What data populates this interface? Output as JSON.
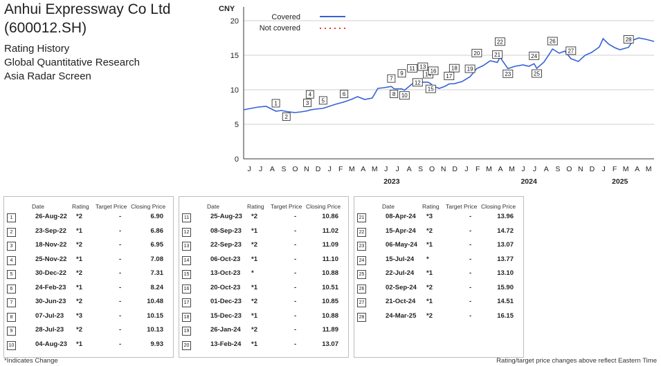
{
  "header": {
    "company": "Anhui Expressway Co Ltd",
    "ticker": "(600012.SH)",
    "lines": [
      "Rating History",
      "Global Quantitative Research",
      "Asia Radar Screen"
    ]
  },
  "table_headers": {
    "date": "Date",
    "rating": "Rating",
    "target": "Target Price",
    "close": "Closing Price"
  },
  "footnotes": {
    "left": "*Indicates Change",
    "right": "Rating/target price changes above reflect Eastern Time"
  },
  "colors": {
    "line": "#3361d6",
    "not_covered": "#e53935",
    "grid": "#cfcfcf"
  },
  "chart_data": {
    "type": "line",
    "ylabel": "CNY",
    "ylim": [
      0,
      22
    ],
    "yticks": [
      0,
      5,
      10,
      15,
      20
    ],
    "x_month_labels": [
      "J",
      "J",
      "A",
      "S",
      "O",
      "N",
      "D",
      "J",
      "F",
      "M",
      "A",
      "M",
      "J",
      "J",
      "A",
      "S",
      "O",
      "N",
      "D",
      "J",
      "F",
      "M",
      "A",
      "M",
      "J",
      "J",
      "A",
      "S",
      "O",
      "N",
      "D",
      "J",
      "F",
      "M",
      "A",
      "M"
    ],
    "x_month_start": "2022-06",
    "year_labels": [
      {
        "label": "2023",
        "month": "2023-07"
      },
      {
        "label": "2024",
        "month": "2024-07"
      },
      {
        "label": "2025",
        "month": "2025-03"
      }
    ],
    "xlim": [
      "2022-06-01",
      "2025-05-31"
    ],
    "legend": [
      {
        "name": "Covered",
        "style": "solid"
      },
      {
        "name": "Not covered",
        "style": "dotted"
      }
    ],
    "series": [
      {
        "name": "Covered",
        "points": [
          [
            "2022-06-01",
            7.1
          ],
          [
            "2022-06-20",
            7.3
          ],
          [
            "2022-07-10",
            7.5
          ],
          [
            "2022-07-31",
            7.6
          ],
          [
            "2022-08-15",
            7.2
          ],
          [
            "2022-08-26",
            6.9
          ],
          [
            "2022-09-10",
            7.0
          ],
          [
            "2022-09-23",
            6.86
          ],
          [
            "2022-10-15",
            6.7
          ],
          [
            "2022-11-01",
            6.8
          ],
          [
            "2022-11-18",
            6.95
          ],
          [
            "2022-11-25",
            7.08
          ],
          [
            "2022-12-10",
            7.2
          ],
          [
            "2022-12-30",
            7.31
          ],
          [
            "2023-01-15",
            7.6
          ],
          [
            "2023-02-01",
            7.9
          ],
          [
            "2023-02-24",
            8.24
          ],
          [
            "2023-03-15",
            8.6
          ],
          [
            "2023-04-01",
            9.0
          ],
          [
            "2023-04-20",
            8.6
          ],
          [
            "2023-05-10",
            8.8
          ],
          [
            "2023-05-25",
            10.2
          ],
          [
            "2023-06-10",
            10.3
          ],
          [
            "2023-06-30",
            10.48
          ],
          [
            "2023-07-07",
            10.15
          ],
          [
            "2023-07-28",
            10.13
          ],
          [
            "2023-08-04",
            9.93
          ],
          [
            "2023-08-25",
            10.86
          ],
          [
            "2023-09-08",
            11.02
          ],
          [
            "2023-09-22",
            11.09
          ],
          [
            "2023-10-06",
            11.1
          ],
          [
            "2023-10-13",
            10.88
          ],
          [
            "2023-10-20",
            10.51
          ],
          [
            "2023-11-05",
            10.2
          ],
          [
            "2023-11-20",
            10.5
          ],
          [
            "2023-12-01",
            10.85
          ],
          [
            "2023-12-15",
            10.88
          ],
          [
            "2024-01-05",
            11.2
          ],
          [
            "2024-01-26",
            11.89
          ],
          [
            "2024-02-13",
            13.07
          ],
          [
            "2024-03-01",
            13.5
          ],
          [
            "2024-03-20",
            14.2
          ],
          [
            "2024-04-08",
            13.96
          ],
          [
            "2024-04-15",
            14.72
          ],
          [
            "2024-05-06",
            13.07
          ],
          [
            "2024-05-25",
            13.4
          ],
          [
            "2024-06-15",
            13.6
          ],
          [
            "2024-07-01",
            13.4
          ],
          [
            "2024-07-15",
            13.77
          ],
          [
            "2024-07-22",
            13.1
          ],
          [
            "2024-08-10",
            14.0
          ],
          [
            "2024-08-25",
            15.2
          ],
          [
            "2024-09-02",
            15.9
          ],
          [
            "2024-09-20",
            15.3
          ],
          [
            "2024-10-05",
            15.6
          ],
          [
            "2024-10-21",
            14.51
          ],
          [
            "2024-11-10",
            14.1
          ],
          [
            "2024-11-28",
            15.0
          ],
          [
            "2024-12-15",
            15.4
          ],
          [
            "2025-01-05",
            16.2
          ],
          [
            "2025-01-15",
            17.4
          ],
          [
            "2025-01-30",
            16.6
          ],
          [
            "2025-02-15",
            16.1
          ],
          [
            "2025-03-01",
            15.8
          ],
          [
            "2025-03-24",
            16.15
          ],
          [
            "2025-04-05",
            17.2
          ],
          [
            "2025-04-20",
            17.5
          ],
          [
            "2025-05-10",
            17.3
          ],
          [
            "2025-05-31",
            17.0
          ]
        ]
      }
    ],
    "markers": [
      {
        "n": "1",
        "date": "2022-08-26",
        "value": 6.9,
        "pos": "above"
      },
      {
        "n": "2",
        "date": "2022-09-23",
        "value": 6.86,
        "pos": "below"
      },
      {
        "n": "3",
        "date": "2022-11-18",
        "value": 6.95,
        "pos": "above"
      },
      {
        "n": "4",
        "date": "2022-11-25",
        "value": 7.08,
        "pos": "above2"
      },
      {
        "n": "5",
        "date": "2022-12-30",
        "value": 7.31,
        "pos": "above"
      },
      {
        "n": "6",
        "date": "2023-02-24",
        "value": 8.24,
        "pos": "above"
      },
      {
        "n": "7",
        "date": "2023-06-30",
        "value": 10.48,
        "pos": "above"
      },
      {
        "n": "8",
        "date": "2023-07-07",
        "value": 10.15,
        "pos": "below"
      },
      {
        "n": "9",
        "date": "2023-07-28",
        "value": 10.13,
        "pos": "above2"
      },
      {
        "n": "10",
        "date": "2023-08-04",
        "value": 9.93,
        "pos": "below"
      },
      {
        "n": "11",
        "date": "2023-08-25",
        "value": 10.86,
        "pos": "above2"
      },
      {
        "n": "12",
        "date": "2023-09-08",
        "value": 11.02,
        "pos": "on"
      },
      {
        "n": "13",
        "date": "2023-09-22",
        "value": 11.09,
        "pos": "above2"
      },
      {
        "n": "14",
        "date": "2023-10-06",
        "value": 11.1,
        "pos": "above"
      },
      {
        "n": "15",
        "date": "2023-10-13",
        "value": 10.88,
        "pos": "below"
      },
      {
        "n": "16",
        "date": "2023-10-20",
        "value": 10.51,
        "pos": "above2"
      },
      {
        "n": "17",
        "date": "2023-12-01",
        "value": 10.85,
        "pos": "above"
      },
      {
        "n": "18",
        "date": "2023-12-15",
        "value": 10.88,
        "pos": "above2"
      },
      {
        "n": "19",
        "date": "2024-01-26",
        "value": 11.89,
        "pos": "above"
      },
      {
        "n": "20",
        "date": "2024-02-13",
        "value": 13.07,
        "pos": "above2"
      },
      {
        "n": "21",
        "date": "2024-04-08",
        "value": 13.96,
        "pos": "above"
      },
      {
        "n": "22",
        "date": "2024-04-15",
        "value": 14.72,
        "pos": "above2"
      },
      {
        "n": "23",
        "date": "2024-05-06",
        "value": 13.07,
        "pos": "below"
      },
      {
        "n": "24",
        "date": "2024-07-15",
        "value": 13.77,
        "pos": "above"
      },
      {
        "n": "25",
        "date": "2024-07-22",
        "value": 13.1,
        "pos": "below"
      },
      {
        "n": "26",
        "date": "2024-09-02",
        "value": 15.9,
        "pos": "above"
      },
      {
        "n": "27",
        "date": "2024-10-21",
        "value": 14.51,
        "pos": "above"
      },
      {
        "n": "28",
        "date": "2025-03-24",
        "value": 16.15,
        "pos": "above"
      }
    ]
  },
  "tables": [
    [
      {
        "n": "1",
        "date": "26-Aug-22",
        "rating": "*2",
        "target": "-",
        "close": "6.90"
      },
      {
        "n": "2",
        "date": "23-Sep-22",
        "rating": "*1",
        "target": "-",
        "close": "6.86"
      },
      {
        "n": "3",
        "date": "18-Nov-22",
        "rating": "*2",
        "target": "-",
        "close": "6.95"
      },
      {
        "n": "4",
        "date": "25-Nov-22",
        "rating": "*1",
        "target": "-",
        "close": "7.08"
      },
      {
        "n": "5",
        "date": "30-Dec-22",
        "rating": "*2",
        "target": "-",
        "close": "7.31"
      },
      {
        "n": "6",
        "date": "24-Feb-23",
        "rating": "*1",
        "target": "-",
        "close": "8.24"
      },
      {
        "n": "7",
        "date": "30-Jun-23",
        "rating": "*2",
        "target": "-",
        "close": "10.48"
      },
      {
        "n": "8",
        "date": "07-Jul-23",
        "rating": "*3",
        "target": "-",
        "close": "10.15"
      },
      {
        "n": "9",
        "date": "28-Jul-23",
        "rating": "*2",
        "target": "-",
        "close": "10.13"
      },
      {
        "n": "10",
        "date": "04-Aug-23",
        "rating": "*1",
        "target": "-",
        "close": "9.93"
      }
    ],
    [
      {
        "n": "11",
        "date": "25-Aug-23",
        "rating": "*2",
        "target": "-",
        "close": "10.86"
      },
      {
        "n": "12",
        "date": "08-Sep-23",
        "rating": "*1",
        "target": "-",
        "close": "11.02"
      },
      {
        "n": "13",
        "date": "22-Sep-23",
        "rating": "*2",
        "target": "-",
        "close": "11.09"
      },
      {
        "n": "14",
        "date": "06-Oct-23",
        "rating": "*1",
        "target": "-",
        "close": "11.10"
      },
      {
        "n": "15",
        "date": "13-Oct-23",
        "rating": "*",
        "target": "-",
        "close": "10.88"
      },
      {
        "n": "16",
        "date": "20-Oct-23",
        "rating": "*1",
        "target": "-",
        "close": "10.51"
      },
      {
        "n": "17",
        "date": "01-Dec-23",
        "rating": "*2",
        "target": "-",
        "close": "10.85"
      },
      {
        "n": "18",
        "date": "15-Dec-23",
        "rating": "*1",
        "target": "-",
        "close": "10.88"
      },
      {
        "n": "19",
        "date": "26-Jan-24",
        "rating": "*2",
        "target": "-",
        "close": "11.89"
      },
      {
        "n": "20",
        "date": "13-Feb-24",
        "rating": "*1",
        "target": "-",
        "close": "13.07"
      }
    ],
    [
      {
        "n": "21",
        "date": "08-Apr-24",
        "rating": "*3",
        "target": "-",
        "close": "13.96"
      },
      {
        "n": "22",
        "date": "15-Apr-24",
        "rating": "*2",
        "target": "-",
        "close": "14.72"
      },
      {
        "n": "23",
        "date": "06-May-24",
        "rating": "*1",
        "target": "-",
        "close": "13.07"
      },
      {
        "n": "24",
        "date": "15-Jul-24",
        "rating": "*",
        "target": "-",
        "close": "13.77"
      },
      {
        "n": "25",
        "date": "22-Jul-24",
        "rating": "*1",
        "target": "-",
        "close": "13.10"
      },
      {
        "n": "26",
        "date": "02-Sep-24",
        "rating": "*2",
        "target": "-",
        "close": "15.90"
      },
      {
        "n": "27",
        "date": "21-Oct-24",
        "rating": "*1",
        "target": "-",
        "close": "14.51"
      },
      {
        "n": "28",
        "date": "24-Mar-25",
        "rating": "*2",
        "target": "-",
        "close": "16.15"
      }
    ]
  ]
}
